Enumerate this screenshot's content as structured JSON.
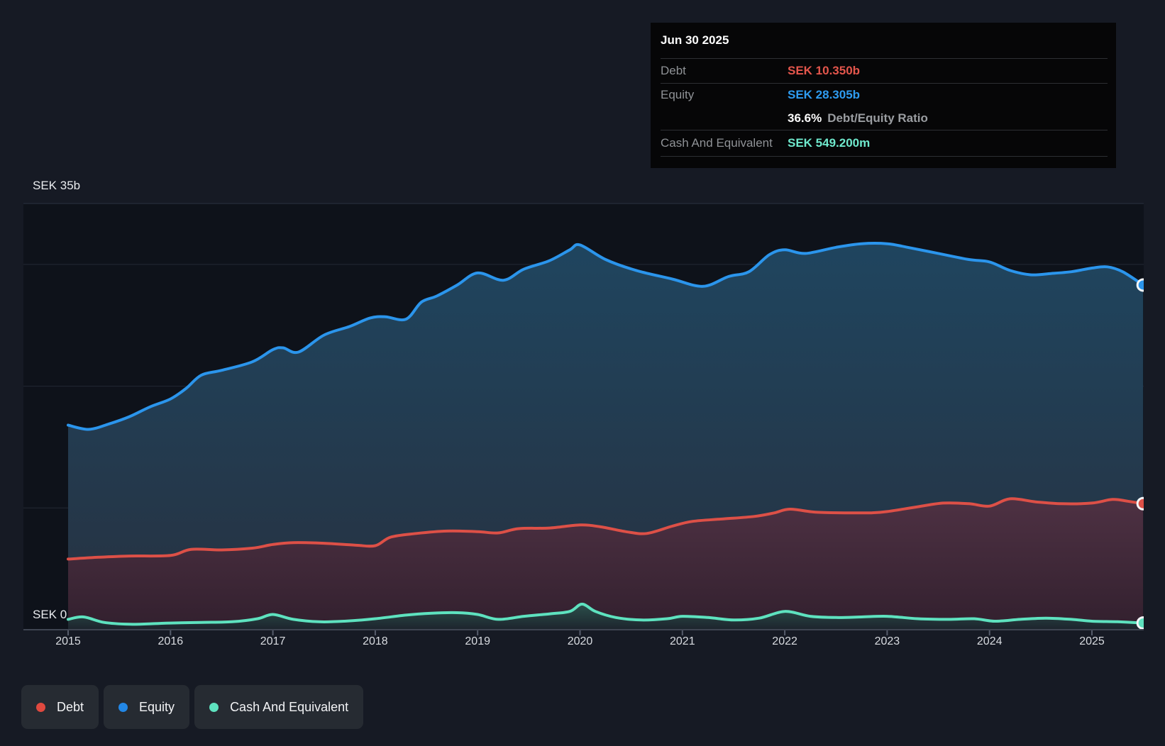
{
  "tooltip": {
    "date": "Jun 30 2025",
    "rows": [
      {
        "label": "Debt",
        "value": "SEK 10.350b",
        "color": "#e4564c"
      },
      {
        "label": "Equity",
        "value": "SEK 28.305b",
        "color": "#2e9bf0"
      },
      {
        "label": "",
        "value_bold": "36.6%",
        "value_rest": "Debt/Equity Ratio"
      },
      {
        "label": "Cash And Equivalent",
        "value": "SEK 549.200m",
        "color": "#6fe9cd"
      }
    ]
  },
  "y_axis": {
    "max_label": "SEK 35b",
    "zero_label": "SEK 0"
  },
  "legend": [
    {
      "label": "Debt",
      "color": "#e0493f"
    },
    {
      "label": "Equity",
      "color": "#2287e6"
    },
    {
      "label": "Cash And Equivalent",
      "color": "#5ee2bf"
    }
  ],
  "chart_data": {
    "type": "area",
    "unit": "SEK billions",
    "title": "Debt to Equity history",
    "x_years": [
      "2015",
      "2016",
      "2017",
      "2018",
      "2019",
      "2020",
      "2021",
      "2022",
      "2023",
      "2024",
      "2025"
    ],
    "x_range": [
      2015.0,
      2025.5
    ],
    "ylim": [
      0,
      35
    ],
    "gridline_values": [
      35,
      30,
      20,
      10
    ],
    "grid_on": true,
    "legend_position": "bottom-left",
    "end_markers": true,
    "series": [
      {
        "name": "Equity",
        "color": "#2b95ec",
        "fill_top": "#1f455f",
        "fill_bottom": "#273140",
        "final_label": "SEK 28.305b",
        "points": [
          [
            2015.0,
            16.8
          ],
          [
            2015.2,
            16.45
          ],
          [
            2015.4,
            16.9
          ],
          [
            2015.6,
            17.5
          ],
          [
            2015.8,
            18.3
          ],
          [
            2016.0,
            18.95
          ],
          [
            2016.15,
            19.8
          ],
          [
            2016.3,
            20.9
          ],
          [
            2016.5,
            21.3
          ],
          [
            2016.8,
            22.0
          ],
          [
            2017.0,
            23.0
          ],
          [
            2017.1,
            23.15
          ],
          [
            2017.25,
            22.8
          ],
          [
            2017.5,
            24.2
          ],
          [
            2017.75,
            24.9
          ],
          [
            2017.95,
            25.6
          ],
          [
            2018.1,
            25.7
          ],
          [
            2018.3,
            25.5
          ],
          [
            2018.45,
            26.9
          ],
          [
            2018.6,
            27.4
          ],
          [
            2018.8,
            28.3
          ],
          [
            2019.0,
            29.3
          ],
          [
            2019.25,
            28.7
          ],
          [
            2019.45,
            29.6
          ],
          [
            2019.7,
            30.3
          ],
          [
            2019.9,
            31.2
          ],
          [
            2020.0,
            31.6
          ],
          [
            2020.25,
            30.4
          ],
          [
            2020.55,
            29.5
          ],
          [
            2020.9,
            28.8
          ],
          [
            2021.2,
            28.2
          ],
          [
            2021.45,
            29.0
          ],
          [
            2021.65,
            29.4
          ],
          [
            2021.85,
            30.8
          ],
          [
            2022.0,
            31.2
          ],
          [
            2022.2,
            30.9
          ],
          [
            2022.5,
            31.4
          ],
          [
            2022.75,
            31.7
          ],
          [
            2023.0,
            31.7
          ],
          [
            2023.2,
            31.4
          ],
          [
            2023.5,
            30.9
          ],
          [
            2023.8,
            30.4
          ],
          [
            2024.0,
            30.2
          ],
          [
            2024.2,
            29.5
          ],
          [
            2024.4,
            29.15
          ],
          [
            2024.6,
            29.25
          ],
          [
            2024.8,
            29.4
          ],
          [
            2025.0,
            29.7
          ],
          [
            2025.15,
            29.8
          ],
          [
            2025.3,
            29.4
          ],
          [
            2025.5,
            28.305
          ]
        ]
      },
      {
        "name": "Debt",
        "color": "#dd5047",
        "fill_top": "#4e3143",
        "fill_bottom": "#32202e",
        "final_label": "SEK 10.350b",
        "points": [
          [
            2015.0,
            5.8
          ],
          [
            2015.3,
            5.95
          ],
          [
            2015.6,
            6.05
          ],
          [
            2016.0,
            6.1
          ],
          [
            2016.2,
            6.6
          ],
          [
            2016.5,
            6.55
          ],
          [
            2016.8,
            6.7
          ],
          [
            2017.0,
            7.0
          ],
          [
            2017.2,
            7.15
          ],
          [
            2017.5,
            7.1
          ],
          [
            2017.8,
            6.95
          ],
          [
            2018.0,
            6.9
          ],
          [
            2018.15,
            7.6
          ],
          [
            2018.4,
            7.9
          ],
          [
            2018.7,
            8.1
          ],
          [
            2019.0,
            8.05
          ],
          [
            2019.2,
            7.95
          ],
          [
            2019.4,
            8.3
          ],
          [
            2019.7,
            8.35
          ],
          [
            2020.0,
            8.6
          ],
          [
            2020.2,
            8.45
          ],
          [
            2020.45,
            8.05
          ],
          [
            2020.65,
            7.9
          ],
          [
            2020.9,
            8.5
          ],
          [
            2021.1,
            8.9
          ],
          [
            2021.4,
            9.1
          ],
          [
            2021.7,
            9.3
          ],
          [
            2021.9,
            9.6
          ],
          [
            2022.05,
            9.9
          ],
          [
            2022.3,
            9.65
          ],
          [
            2022.6,
            9.6
          ],
          [
            2022.85,
            9.6
          ],
          [
            2023.0,
            9.7
          ],
          [
            2023.3,
            10.1
          ],
          [
            2023.55,
            10.4
          ],
          [
            2023.8,
            10.35
          ],
          [
            2024.0,
            10.15
          ],
          [
            2024.2,
            10.75
          ],
          [
            2024.45,
            10.5
          ],
          [
            2024.7,
            10.35
          ],
          [
            2025.0,
            10.4
          ],
          [
            2025.2,
            10.7
          ],
          [
            2025.35,
            10.55
          ],
          [
            2025.5,
            10.35
          ]
        ]
      },
      {
        "name": "Cash And Equivalent",
        "color": "#5ee2bf",
        "fill_top": "#2b4f4b",
        "fill_bottom": "#1d242d",
        "final_label": "SEK 549.200m",
        "points": [
          [
            2015.0,
            0.85
          ],
          [
            2015.15,
            1.05
          ],
          [
            2015.35,
            0.6
          ],
          [
            2015.6,
            0.45
          ],
          [
            2015.85,
            0.5
          ],
          [
            2016.0,
            0.55
          ],
          [
            2016.3,
            0.6
          ],
          [
            2016.6,
            0.65
          ],
          [
            2016.85,
            0.9
          ],
          [
            2017.0,
            1.25
          ],
          [
            2017.2,
            0.85
          ],
          [
            2017.45,
            0.65
          ],
          [
            2017.7,
            0.7
          ],
          [
            2018.0,
            0.9
          ],
          [
            2018.3,
            1.2
          ],
          [
            2018.55,
            1.35
          ],
          [
            2018.8,
            1.4
          ],
          [
            2019.0,
            1.25
          ],
          [
            2019.2,
            0.85
          ],
          [
            2019.45,
            1.1
          ],
          [
            2019.7,
            1.3
          ],
          [
            2019.9,
            1.5
          ],
          [
            2020.02,
            2.1
          ],
          [
            2020.15,
            1.5
          ],
          [
            2020.35,
            1.0
          ],
          [
            2020.6,
            0.8
          ],
          [
            2020.85,
            0.9
          ],
          [
            2021.0,
            1.1
          ],
          [
            2021.25,
            1.0
          ],
          [
            2021.5,
            0.8
          ],
          [
            2021.75,
            0.95
          ],
          [
            2022.0,
            1.5
          ],
          [
            2022.25,
            1.1
          ],
          [
            2022.5,
            1.0
          ],
          [
            2022.75,
            1.05
          ],
          [
            2023.0,
            1.1
          ],
          [
            2023.3,
            0.9
          ],
          [
            2023.6,
            0.85
          ],
          [
            2023.85,
            0.9
          ],
          [
            2024.05,
            0.7
          ],
          [
            2024.3,
            0.85
          ],
          [
            2024.55,
            0.95
          ],
          [
            2024.8,
            0.85
          ],
          [
            2025.0,
            0.7
          ],
          [
            2025.25,
            0.65
          ],
          [
            2025.5,
            0.549
          ]
        ]
      }
    ],
    "colors": {
      "page_bg": "#161a24",
      "plot_bg": "#0e121a",
      "gridline": "#232834",
      "gridline_top": "#2b3140",
      "baseline": "#3f4552",
      "tick": "#565c6b",
      "year_label": "#d8dbe0"
    }
  }
}
